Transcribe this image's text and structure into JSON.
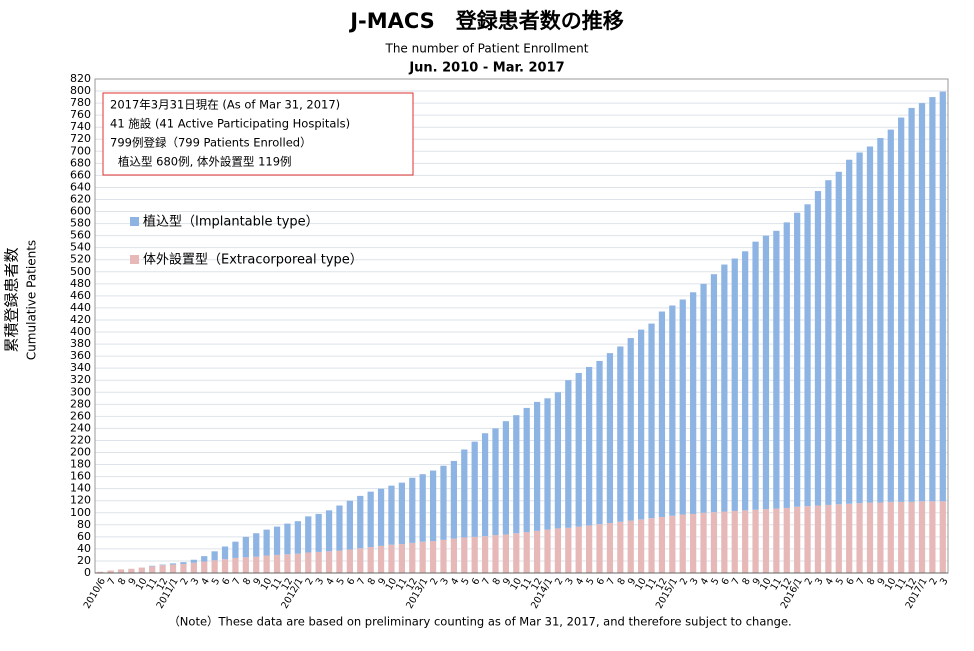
{
  "chart_data": {
    "type": "stacked_bar",
    "title": "J-MACS　登録患者数の推移",
    "subtitle": "The number of Patient Enrollment",
    "period": "Jun. 2010 - Mar. 2017",
    "info_box": [
      "2017年3月31日現在 (As of Mar 31, 2017)",
      "41 施設 (41 Active Participating Hospitals)",
      "799例登録（799 Patients Enrolled）",
      "植込型 680例, 体外設置型 119例"
    ],
    "y_label": "累積登録患者数",
    "y_label_en": "Cumulative Patients",
    "note": "（Note）These data are based on preliminary counting as of Mar 31, 2017,  and therefore subject to change.",
    "categories": [
      "2010/6",
      "7",
      "8",
      "9",
      "10",
      "11",
      "12",
      "2011/1",
      "2",
      "3",
      "4",
      "5",
      "6",
      "7",
      "8",
      "9",
      "10",
      "11",
      "12",
      "2012/1",
      "2",
      "3",
      "4",
      "5",
      "6",
      "7",
      "8",
      "9",
      "10",
      "11",
      "12",
      "2013/1",
      "2",
      "3",
      "4",
      "5",
      "6",
      "7",
      "8",
      "9",
      "10",
      "11",
      "12",
      "2014/1",
      "2",
      "3",
      "4",
      "5",
      "6",
      "7",
      "8",
      "9",
      "10",
      "11",
      "12",
      "2015/1",
      "2",
      "3",
      "4",
      "5",
      "6",
      "7",
      "8",
      "9",
      "10",
      "11",
      "12",
      "2016/1",
      "2",
      "3",
      "4",
      "5",
      "6",
      "7",
      "8",
      "9",
      "10",
      "11",
      "12",
      "2017/1",
      "2",
      "3"
    ],
    "series": [
      {
        "name": "体外設置型（Extracorporeal type）",
        "color": "#e6b9b8",
        "values": [
          2,
          4,
          6,
          7,
          9,
          11,
          13,
          14,
          15,
          17,
          19,
          21,
          23,
          25,
          26,
          27,
          29,
          30,
          31,
          32,
          34,
          35,
          36,
          37,
          39,
          41,
          43,
          45,
          47,
          48,
          50,
          52,
          53,
          55,
          57,
          59,
          60,
          61,
          63,
          64,
          66,
          68,
          70,
          72,
          74,
          75,
          77,
          79,
          81,
          83,
          85,
          87,
          89,
          91,
          93,
          95,
          97,
          98,
          100,
          101,
          102,
          103,
          104,
          105,
          106,
          107,
          108,
          110,
          111,
          112,
          113,
          114,
          115,
          116,
          117,
          117,
          118,
          118,
          118,
          119,
          119,
          119
        ]
      },
      {
        "name": "植込型（Implantable type）",
        "color": "#8eb4e3",
        "values": [
          0,
          0,
          0,
          0,
          0,
          1,
          1,
          2,
          3,
          5,
          9,
          15,
          21,
          27,
          34,
          39,
          43,
          47,
          51,
          54,
          60,
          63,
          68,
          75,
          81,
          87,
          92,
          95,
          98,
          102,
          108,
          112,
          117,
          123,
          129,
          146,
          158,
          171,
          177,
          188,
          196,
          206,
          214,
          218,
          226,
          245,
          255,
          263,
          271,
          282,
          291,
          303,
          315,
          323,
          341,
          349,
          357,
          368,
          380,
          395,
          410,
          419,
          430,
          445,
          454,
          461,
          474,
          488,
          501,
          522,
          539,
          552,
          571,
          582,
          591,
          605,
          618,
          638,
          654,
          661,
          671,
          680
        ]
      }
    ],
    "ylim": [
      0,
      820
    ],
    "yticks": [
      0,
      20,
      40,
      60,
      80,
      100,
      120,
      140,
      160,
      180,
      200,
      220,
      240,
      260,
      280,
      300,
      320,
      340,
      360,
      380,
      400,
      420,
      440,
      460,
      480,
      500,
      520,
      540,
      560,
      580,
      600,
      620,
      640,
      660,
      680,
      700,
      720,
      740,
      760,
      780,
      800,
      820
    ],
    "grid": true
  }
}
